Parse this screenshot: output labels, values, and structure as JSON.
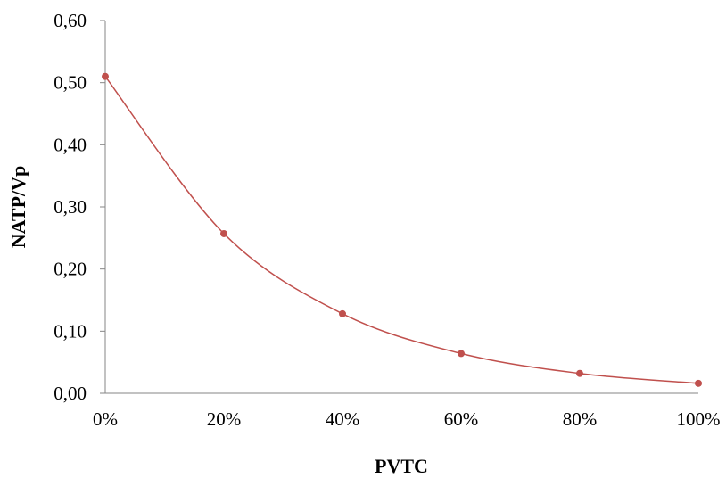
{
  "chart_data": {
    "type": "line",
    "xlabel": "PVTC",
    "ylabel": "NATP/Vp",
    "x": [
      0,
      20,
      40,
      60,
      80,
      100
    ],
    "x_tick_labels": [
      "0%",
      "20%",
      "40%",
      "60%",
      "80%",
      "100%"
    ],
    "y_ticks": [
      0,
      0.1,
      0.2,
      0.3,
      0.4,
      0.5,
      0.6
    ],
    "y_tick_labels": [
      "0,00",
      "0,10",
      "0,20",
      "0,30",
      "0,40",
      "0,50",
      "0,60"
    ],
    "xlim": [
      0,
      100
    ],
    "ylim": [
      0,
      0.6
    ],
    "grid": false,
    "legend": "none",
    "smooth": true,
    "series": [
      {
        "values": [
          0.51,
          0.257,
          0.128,
          0.064,
          0.032,
          0.016
        ],
        "color": "#C0504D"
      }
    ]
  }
}
